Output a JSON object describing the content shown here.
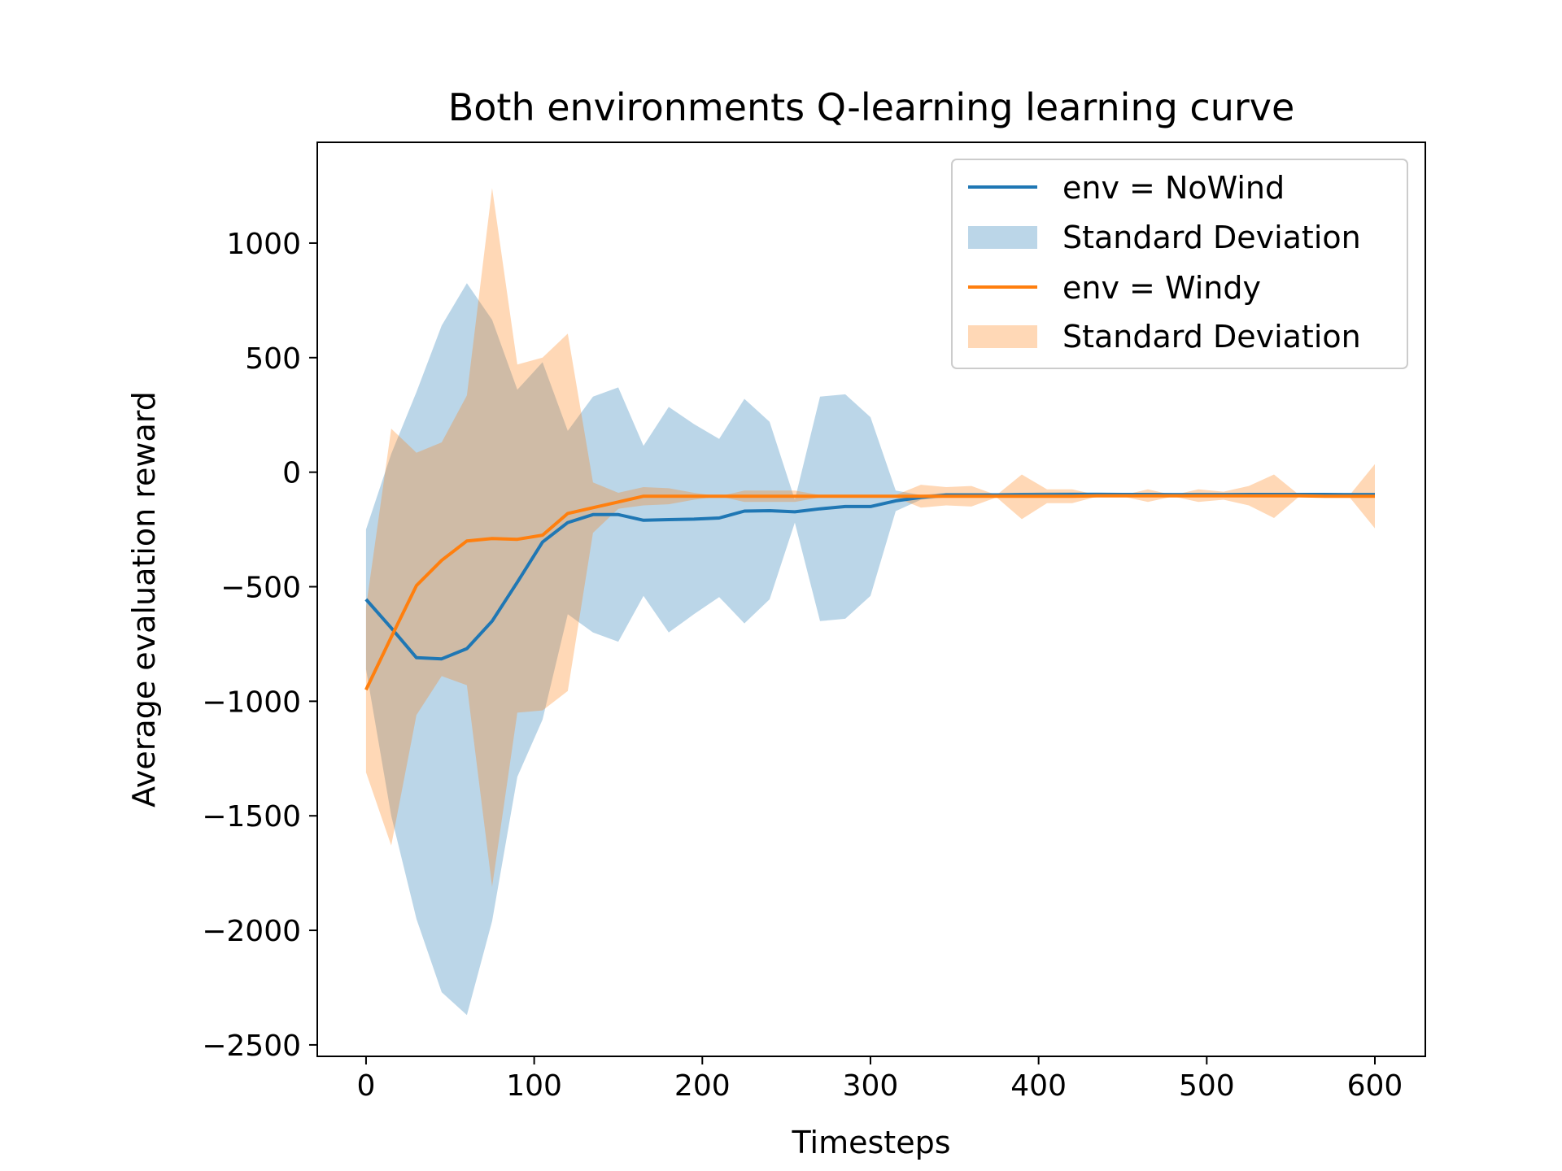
{
  "chart_data": {
    "type": "line",
    "title": "Both environments Q-learning learning curve",
    "xlabel": "Timesteps",
    "ylabel": "Average evaluation reward",
    "xlim": [
      -29,
      630
    ],
    "ylim": [
      -2550,
      1440
    ],
    "xticks": [
      0,
      100,
      200,
      300,
      400,
      500,
      600
    ],
    "yticks": [
      -2500,
      -2000,
      -1500,
      -1000,
      -500,
      0,
      500,
      1000
    ],
    "grid": false,
    "legend_position": "top-right",
    "x": [
      0,
      15,
      30,
      45,
      60,
      75,
      90,
      105,
      120,
      135,
      150,
      165,
      180,
      195,
      210,
      225,
      240,
      255,
      270,
      285,
      300,
      315,
      330,
      345,
      360,
      375,
      390,
      405,
      420,
      435,
      450,
      465,
      480,
      495,
      510,
      525,
      540,
      555,
      570,
      585,
      600
    ],
    "series": [
      {
        "name": "env = NoWind",
        "color": "#1f77b4",
        "band_color": "#1f77b4",
        "band_name": "Standard Deviation",
        "values": [
          -555,
          -680,
          -810,
          -815,
          -770,
          -650,
          -480,
          -305,
          -220,
          -185,
          -185,
          -210,
          -207,
          -205,
          -200,
          -170,
          -168,
          -173,
          -160,
          -150,
          -150,
          -125,
          -110,
          -100,
          -100,
          -100,
          -98,
          -98,
          -97,
          -97,
          -97,
          -97,
          -98,
          -98,
          -98,
          -97,
          -97,
          -97,
          -97,
          -98,
          -98
        ],
        "upper": [
          -250,
          80,
          350,
          640,
          825,
          665,
          360,
          480,
          180,
          330,
          370,
          115,
          285,
          210,
          145,
          320,
          220,
          -120,
          330,
          340,
          240,
          -80,
          -100,
          -90,
          -90,
          -90,
          -90,
          -88,
          -88,
          -88,
          -90,
          -90,
          -90,
          -90,
          -90,
          -90,
          -90,
          -90,
          -90,
          -90,
          -90
        ],
        "lower": [
          -860,
          -1500,
          -1950,
          -2270,
          -2370,
          -1960,
          -1330,
          -1080,
          -620,
          -700,
          -740,
          -540,
          -700,
          -620,
          -545,
          -660,
          -555,
          -220,
          -650,
          -640,
          -540,
          -170,
          -120,
          -110,
          -110,
          -110,
          -106,
          -108,
          -106,
          -106,
          -104,
          -104,
          -106,
          -106,
          -106,
          -104,
          -104,
          -104,
          -104,
          -106,
          -106
        ]
      },
      {
        "name": "env = Windy",
        "color": "#ff7f0e",
        "band_color": "#ff7f0e",
        "band_name": "Standard Deviation",
        "values": [
          -950,
          -720,
          -495,
          -385,
          -300,
          -290,
          -293,
          -275,
          -180,
          -155,
          -130,
          -105,
          -105,
          -105,
          -105,
          -105,
          -105,
          -105,
          -105,
          -105,
          -105,
          -105,
          -105,
          -105,
          -105,
          -105,
          -105,
          -105,
          -105,
          -103,
          -103,
          -103,
          -103,
          -103,
          -103,
          -103,
          -103,
          -103,
          -105,
          -105,
          -105
        ],
        "upper": [
          -590,
          190,
          85,
          130,
          335,
          1240,
          470,
          500,
          605,
          -45,
          -90,
          -65,
          -70,
          -90,
          -105,
          -80,
          -80,
          -80,
          -100,
          -100,
          -100,
          -100,
          -55,
          -65,
          -60,
          -100,
          -10,
          -75,
          -75,
          -100,
          -100,
          -75,
          -100,
          -75,
          -85,
          -60,
          -10,
          -100,
          -100,
          -100,
          35
        ],
        "lower": [
          -1310,
          -1630,
          -1060,
          -890,
          -930,
          -1810,
          -1050,
          -1040,
          -955,
          -265,
          -160,
          -145,
          -140,
          -120,
          -105,
          -130,
          -130,
          -130,
          -110,
          -110,
          -110,
          -110,
          -155,
          -145,
          -150,
          -110,
          -205,
          -135,
          -135,
          -106,
          -106,
          -130,
          -106,
          -130,
          -120,
          -145,
          -200,
          -106,
          -110,
          -110,
          -245
        ]
      }
    ]
  }
}
